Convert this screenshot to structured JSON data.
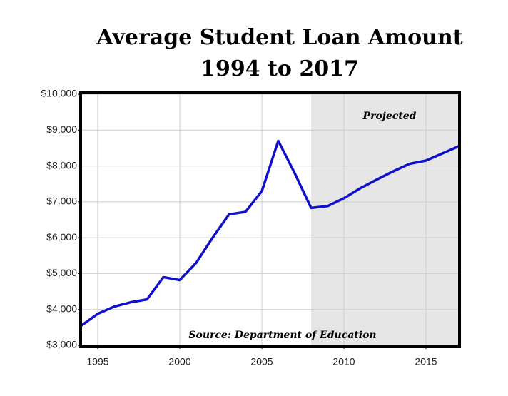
{
  "chart_data": {
    "type": "line",
    "title": [
      "Average Student Loan Amount",
      "1994 to 2017"
    ],
    "x": [
      1994,
      1995,
      1996,
      1997,
      1998,
      1999,
      2000,
      2001,
      2002,
      2003,
      2004,
      2005,
      2006,
      2007,
      2008,
      2009,
      2010,
      2011,
      2012,
      2013,
      2014,
      2015,
      2016,
      2017
    ],
    "values": [
      3550,
      3880,
      4080,
      4200,
      4280,
      4900,
      4820,
      5300,
      6000,
      6650,
      6720,
      7300,
      8700,
      7800,
      6830,
      6880,
      7100,
      7380,
      7620,
      7850,
      8060,
      8150,
      8350,
      8550
    ],
    "color": "#1010cc",
    "xlim": [
      1994,
      2017
    ],
    "xticks": [
      1995,
      2000,
      2005,
      2010,
      2015
    ],
    "ylim": [
      3000,
      10000
    ],
    "yticks": [
      {
        "value": 3000,
        "label": "$3,000"
      },
      {
        "value": 4000,
        "label": "$4,000"
      },
      {
        "value": 5000,
        "label": "$5,000"
      },
      {
        "value": 6000,
        "label": "$6,000"
      },
      {
        "value": 7000,
        "label": "$7,000"
      },
      {
        "value": 8000,
        "label": "$8,000"
      },
      {
        "value": 9000,
        "label": "$9,000"
      },
      {
        "value": 10000,
        "label": "$10,000"
      }
    ],
    "grid": true,
    "shade": {
      "from": 2008,
      "to": 2017,
      "label": "Projected",
      "color": "#e6e6e6"
    },
    "source": "Source: Department of Education"
  }
}
